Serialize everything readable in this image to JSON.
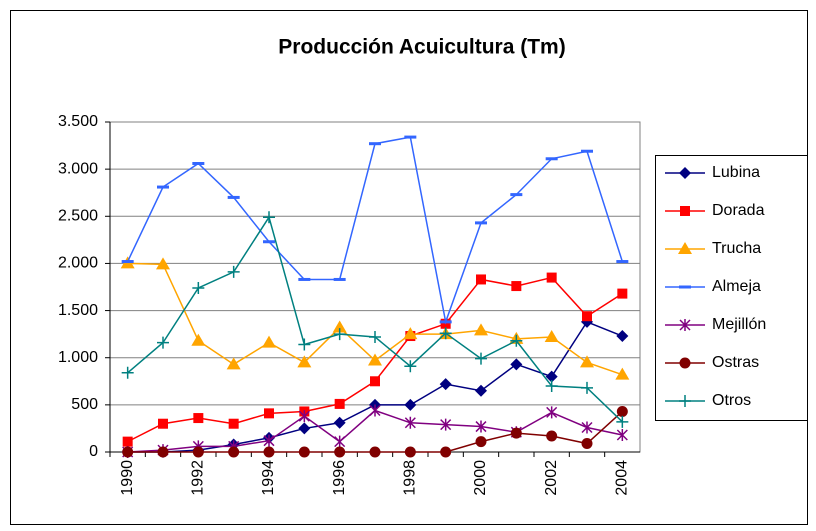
{
  "chart_data": {
    "type": "line",
    "title": "Producción Acuicultura (Tm)",
    "categories": [
      "1990",
      null,
      "1992",
      null,
      "1994",
      null,
      "1996",
      null,
      "1998",
      null,
      "2000",
      null,
      "2002",
      null,
      "2004"
    ],
    "series": [
      {
        "name": "Lubina",
        "color": "#000080",
        "marker": "diamond",
        "values": [
          0,
          0,
          20,
          80,
          150,
          250,
          310,
          500,
          500,
          720,
          650,
          930,
          800,
          1380,
          1230
        ]
      },
      {
        "name": "Dorada",
        "color": "#ff0000",
        "marker": "square",
        "values": [
          110,
          300,
          360,
          300,
          410,
          430,
          510,
          750,
          1230,
          1360,
          1830,
          1760,
          1850,
          1440,
          1680
        ]
      },
      {
        "name": "Trucha",
        "color": "#ffa500",
        "marker": "triangle",
        "values": [
          2000,
          1990,
          1180,
          930,
          1160,
          950,
          1320,
          970,
          1250,
          1250,
          1290,
          1200,
          1220,
          950,
          820
        ]
      },
      {
        "name": "Almeja",
        "color": "#3366ff",
        "marker": "dash",
        "values": [
          2020,
          2810,
          3060,
          2700,
          2230,
          1830,
          1830,
          3270,
          3340,
          1380,
          2430,
          2730,
          3110,
          3190,
          2020
        ]
      },
      {
        "name": "Mejillón",
        "color": "#800080",
        "marker": "star",
        "values": [
          0,
          20,
          60,
          60,
          120,
          380,
          110,
          440,
          310,
          290,
          270,
          210,
          420,
          260,
          180
        ]
      },
      {
        "name": "Ostras",
        "color": "#800000",
        "marker": "circle",
        "values": [
          0,
          0,
          0,
          0,
          0,
          0,
          0,
          0,
          0,
          0,
          110,
          200,
          170,
          90,
          430
        ]
      },
      {
        "name": "Otros",
        "color": "#008080",
        "marker": "plus",
        "values": [
          840,
          1160,
          1740,
          1910,
          2490,
          1140,
          1250,
          1220,
          910,
          1260,
          990,
          1180,
          700,
          680,
          320
        ]
      }
    ],
    "ylim": [
      0,
      3500
    ],
    "yticks": [
      0,
      500,
      {
        "value": 1000,
        "label": "1.000"
      },
      {
        "value": 1500,
        "label": "1.500"
      },
      {
        "value": 2000,
        "label": "2.000"
      },
      {
        "value": 2500,
        "label": "2.500"
      },
      {
        "value": 3000,
        "label": "3.000"
      },
      {
        "value": 3500,
        "label": "3.500"
      }
    ],
    "grid": true,
    "legend": "right"
  }
}
